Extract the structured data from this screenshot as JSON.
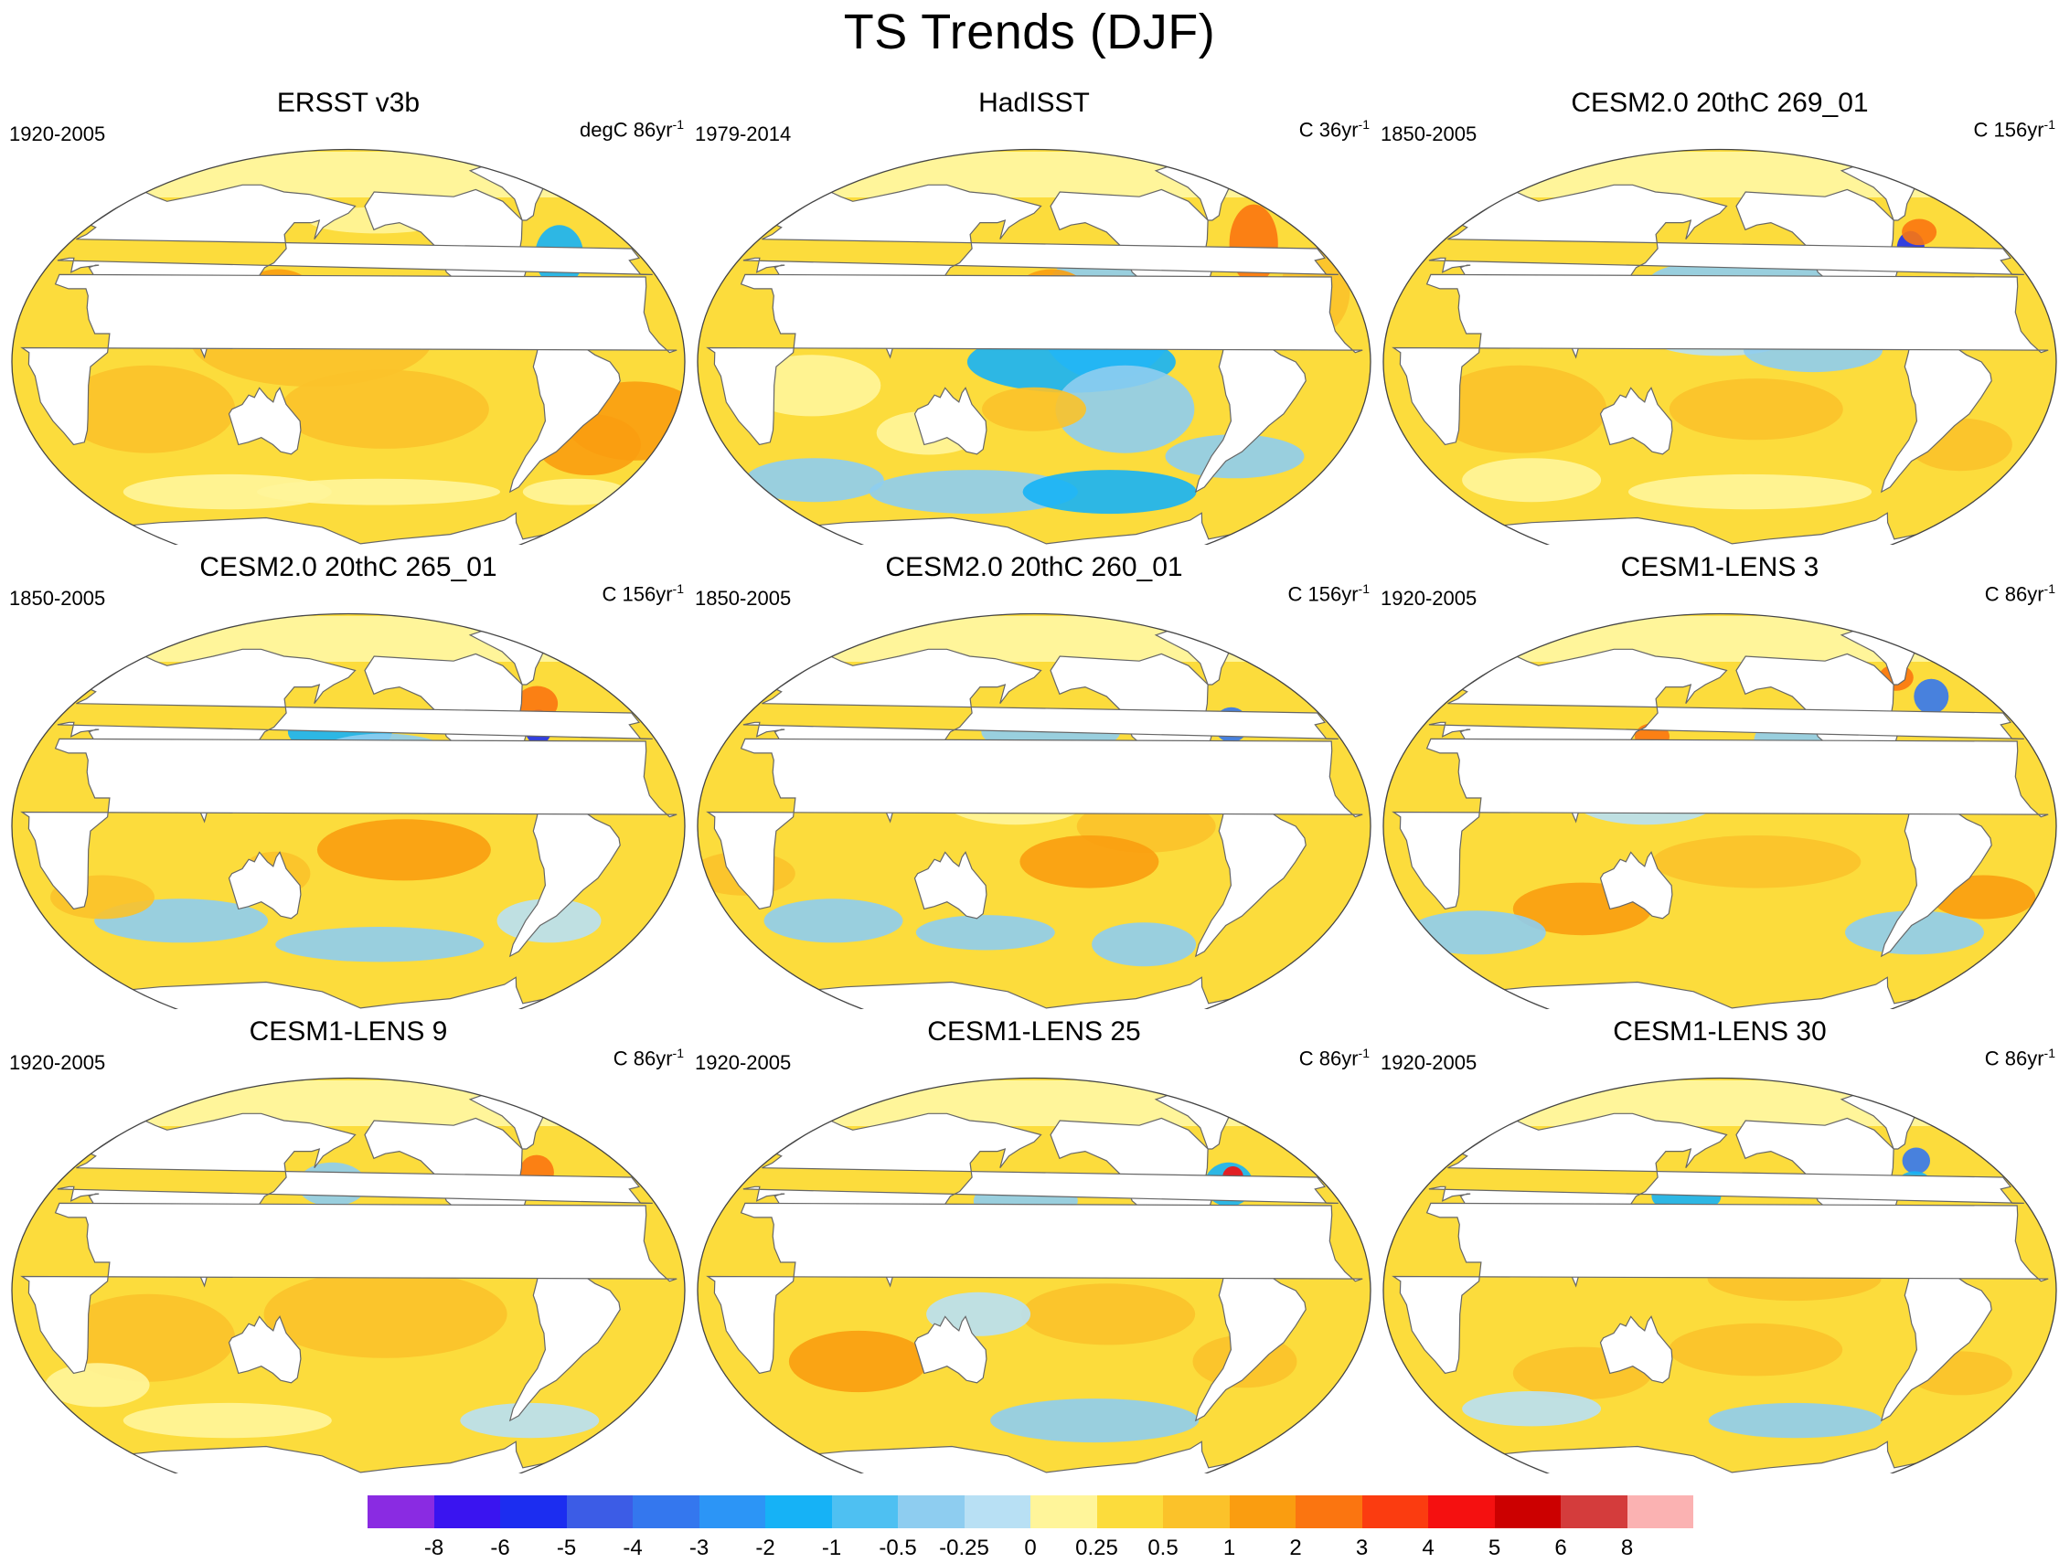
{
  "title": "TS Trends (DJF)",
  "panels": [
    {
      "title": "ERSST v3b",
      "period": "1920-2005",
      "units": "degC 86yr",
      "exp": "-1"
    },
    {
      "title": "HadISST",
      "period": "1979-2014",
      "units": "C 36yr",
      "exp": "-1"
    },
    {
      "title": "CESM2.0 20thC 269_01",
      "period": "1850-2005",
      "units": "C 156yr",
      "exp": "-1"
    },
    {
      "title": "CESM2.0 20thC 265_01",
      "period": "1850-2005",
      "units": "C 156yr",
      "exp": "-1"
    },
    {
      "title": "CESM2.0 20thC 260_01",
      "period": "1850-2005",
      "units": "C 156yr",
      "exp": "-1"
    },
    {
      "title": "CESM1-LENS 3",
      "period": "1920-2005",
      "units": "C 86yr",
      "exp": "-1"
    },
    {
      "title": "CESM1-LENS 9",
      "period": "1920-2005",
      "units": "C 86yr",
      "exp": "-1"
    },
    {
      "title": "CESM1-LENS 25",
      "period": "1920-2005",
      "units": "C 86yr",
      "exp": "-1"
    },
    {
      "title": "CESM1-LENS 30",
      "period": "1920-2005",
      "units": "C 86yr",
      "exp": "-1"
    }
  ],
  "colorbar": {
    "labels": [
      "-8",
      "-6",
      "-5",
      "-4",
      "-3",
      "-2",
      "-1",
      "-0.5",
      "-0.25",
      "0",
      "0.25",
      "0.5",
      "1",
      "2",
      "3",
      "4",
      "5",
      "6",
      "8"
    ],
    "colors": [
      "#8a2be2",
      "#3a14f0",
      "#1c2df0",
      "#3c5ce6",
      "#3477ee",
      "#2c95f6",
      "#16b2f6",
      "#4ec0f2",
      "#8ecdf0",
      "#b8e0f4",
      "#fff59a",
      "#fcdc3c",
      "#fbc22a",
      "#fa9d10",
      "#fb7510",
      "#fb3c10",
      "#f51010",
      "#cc0000",
      "#d43c3c",
      "#fbb2b2"
    ]
  }
}
